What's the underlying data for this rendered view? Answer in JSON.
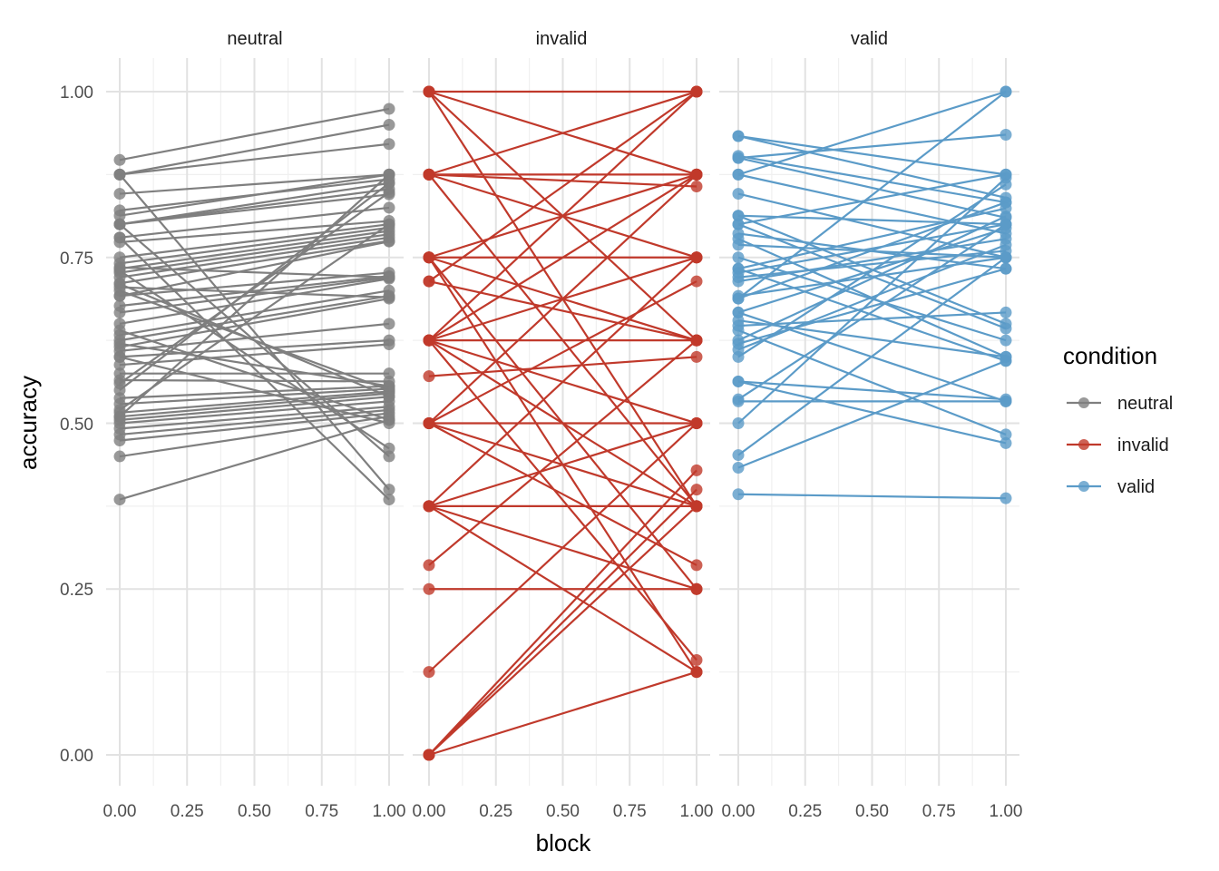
{
  "chart_data": {
    "type": "line",
    "xlabel": "block",
    "ylabel": "accuracy",
    "xlim": [
      0,
      1
    ],
    "ylim": [
      0,
      1
    ],
    "x_ticks": [
      "0.00",
      "0.25",
      "0.50",
      "0.75",
      "1.00"
    ],
    "y_ticks": [
      "0.00",
      "0.25",
      "0.50",
      "0.75",
      "1.00"
    ],
    "grid": true,
    "legend": {
      "title": "condition",
      "position": "right",
      "entries": [
        "neutral",
        "invalid",
        "valid"
      ]
    },
    "colors": {
      "neutral": "#7f7f7f",
      "invalid": "#c0392b",
      "valid": "#5b9bc8"
    },
    "panels": [
      {
        "name": "neutral",
        "pairs": [
          [
            0.897,
            0.974
          ],
          [
            0.875,
            0.95
          ],
          [
            0.875,
            0.921
          ],
          [
            0.846,
            0.875
          ],
          [
            0.821,
            0.868
          ],
          [
            0.813,
            0.875
          ],
          [
            0.8,
            0.862
          ],
          [
            0.8,
            0.853
          ],
          [
            0.8,
            0.845
          ],
          [
            0.78,
            0.825
          ],
          [
            0.773,
            0.805
          ],
          [
            0.75,
            0.8
          ],
          [
            0.741,
            0.795
          ],
          [
            0.733,
            0.79
          ],
          [
            0.727,
            0.785
          ],
          [
            0.72,
            0.78
          ],
          [
            0.711,
            0.775
          ],
          [
            0.692,
            0.774
          ],
          [
            0.692,
            0.727
          ],
          [
            0.677,
            0.722
          ],
          [
            0.667,
            0.72
          ],
          [
            0.65,
            0.718
          ],
          [
            0.633,
            0.7
          ],
          [
            0.625,
            0.692
          ],
          [
            0.615,
            0.688
          ],
          [
            0.609,
            0.65
          ],
          [
            0.6,
            0.625
          ],
          [
            0.588,
            0.619
          ],
          [
            0.575,
            0.575
          ],
          [
            0.565,
            0.563
          ],
          [
            0.538,
            0.556
          ],
          [
            0.529,
            0.552
          ],
          [
            0.516,
            0.548
          ],
          [
            0.51,
            0.545
          ],
          [
            0.505,
            0.54
          ],
          [
            0.5,
            0.533
          ],
          [
            0.492,
            0.525
          ],
          [
            0.483,
            0.52
          ],
          [
            0.474,
            0.515
          ],
          [
            0.45,
            0.51
          ],
          [
            0.385,
            0.505
          ],
          [
            0.6,
            0.5
          ],
          [
            0.73,
            0.462
          ],
          [
            0.8,
            0.45
          ],
          [
            0.875,
            0.4
          ],
          [
            0.78,
            0.385
          ],
          [
            0.52,
            0.8
          ],
          [
            0.51,
            0.875
          ],
          [
            0.55,
            0.862
          ],
          [
            0.56,
            0.848
          ],
          [
            0.7,
            0.55
          ],
          [
            0.71,
            0.54
          ],
          [
            0.62,
            0.556
          ],
          [
            0.735,
            0.72
          ],
          [
            0.705,
            0.69
          ],
          [
            0.64,
            0.505
          ]
        ]
      },
      {
        "name": "invalid",
        "pairs": [
          [
            1.0,
            1.0
          ],
          [
            1.0,
            0.875
          ],
          [
            1.0,
            0.625
          ],
          [
            1.0,
            0.375
          ],
          [
            0.875,
            1.0
          ],
          [
            0.875,
            0.875
          ],
          [
            0.875,
            0.857
          ],
          [
            0.875,
            0.375
          ],
          [
            0.75,
            0.75
          ],
          [
            0.75,
            0.625
          ],
          [
            0.75,
            0.125
          ],
          [
            0.75,
            0.25
          ],
          [
            0.714,
            1.0
          ],
          [
            0.714,
            0.625
          ],
          [
            0.625,
            1.0
          ],
          [
            0.625,
            0.875
          ],
          [
            0.625,
            0.75
          ],
          [
            0.625,
            0.625
          ],
          [
            0.625,
            0.375
          ],
          [
            0.625,
            0.143
          ],
          [
            0.571,
            0.6
          ],
          [
            0.5,
            0.875
          ],
          [
            0.5,
            0.714
          ],
          [
            0.5,
            0.5
          ],
          [
            0.5,
            0.375
          ],
          [
            0.5,
            0.286
          ],
          [
            0.375,
            0.75
          ],
          [
            0.375,
            0.5
          ],
          [
            0.375,
            0.375
          ],
          [
            0.375,
            0.125
          ],
          [
            0.375,
            0.25
          ],
          [
            0.286,
            0.625
          ],
          [
            0.25,
            0.25
          ],
          [
            0.125,
            0.5
          ],
          [
            0.0,
            0.429
          ],
          [
            0.0,
            0.4
          ],
          [
            0.0,
            0.125
          ],
          [
            0.0,
            0.375
          ],
          [
            0.75,
            0.875
          ],
          [
            0.625,
            0.5
          ],
          [
            0.875,
            0.75
          ]
        ]
      },
      {
        "name": "valid",
        "pairs": [
          [
            0.933,
            0.875
          ],
          [
            0.933,
            0.84
          ],
          [
            0.9,
            0.935
          ],
          [
            0.9,
            0.81
          ],
          [
            0.903,
            0.833
          ],
          [
            0.875,
            1.0
          ],
          [
            0.875,
            0.786
          ],
          [
            0.846,
            0.75
          ],
          [
            0.813,
            0.8
          ],
          [
            0.813,
            0.65
          ],
          [
            0.8,
            0.875
          ],
          [
            0.8,
            0.643
          ],
          [
            0.786,
            0.733
          ],
          [
            0.778,
            0.6
          ],
          [
            0.769,
            0.75
          ],
          [
            0.75,
            0.625
          ],
          [
            0.733,
            0.824
          ],
          [
            0.733,
            0.594
          ],
          [
            0.727,
            0.8
          ],
          [
            0.72,
            0.76
          ],
          [
            0.714,
            0.778
          ],
          [
            0.692,
            0.75
          ],
          [
            0.688,
            1.0
          ],
          [
            0.688,
            0.833
          ],
          [
            0.667,
            0.794
          ],
          [
            0.667,
            0.533
          ],
          [
            0.655,
            0.6
          ],
          [
            0.647,
            0.667
          ],
          [
            0.64,
            0.483
          ],
          [
            0.625,
            0.812
          ],
          [
            0.62,
            0.733
          ],
          [
            0.611,
            0.769
          ],
          [
            0.6,
            0.86
          ],
          [
            0.563,
            0.47
          ],
          [
            0.563,
            0.536
          ],
          [
            0.536,
            0.8
          ],
          [
            0.533,
            0.533
          ],
          [
            0.5,
            0.87
          ],
          [
            0.452,
            0.75
          ],
          [
            0.433,
            0.594
          ],
          [
            0.393,
            0.387
          ]
        ]
      }
    ]
  }
}
